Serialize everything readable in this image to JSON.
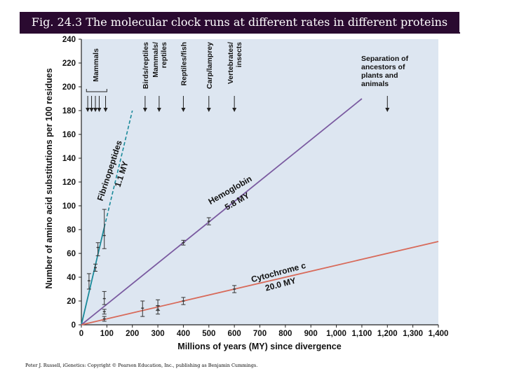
{
  "figure_title": "Fig. 24.3 The molecular clock runs at different rates in different proteins",
  "footer": "Peter J. Russell, iGenetics: Copyright © Pearson Education, Inc., publishing as Benjamin Cummings.",
  "chart_data": {
    "type": "line",
    "xlabel": "Millions of years (MY) since divergence",
    "ylabel": "Number of amino acid substitutions per 100 residues",
    "xlim": [
      0,
      1400
    ],
    "ylim": [
      0,
      240
    ],
    "x_ticks": [
      0,
      100,
      200,
      300,
      400,
      500,
      600,
      700,
      800,
      900,
      1000,
      1100,
      1200,
      1300,
      1400
    ],
    "x_tick_labels": [
      "0",
      "100",
      "200",
      "300",
      "400",
      "500",
      "600",
      "700",
      "800",
      "900",
      "1,000",
      "1,100",
      "1,200",
      "1,300",
      "1,400"
    ],
    "y_ticks": [
      0,
      20,
      40,
      60,
      80,
      100,
      120,
      140,
      160,
      180,
      200,
      220,
      240
    ],
    "y_tick_labels": [
      "0",
      "20",
      "40",
      "60",
      "80",
      "100",
      "120",
      "140",
      "160",
      "180",
      "200",
      "220",
      "240"
    ],
    "grid": false,
    "series": [
      {
        "name": "Fibrinopeptides",
        "rate_label": "1.1 MY",
        "color": "#1a8a9a",
        "line": [
          [
            0,
            0
          ],
          [
            90,
            82
          ]
        ],
        "dashed_extension": [
          [
            90,
            82
          ],
          [
            200,
            180
          ]
        ],
        "points": [
          {
            "x": 30,
            "y": 37,
            "low": 30,
            "high": 43
          },
          {
            "x": 55,
            "y": 48,
            "low": 45,
            "high": 51
          },
          {
            "x": 65,
            "y": 65,
            "low": 58,
            "high": 69
          },
          {
            "x": 90,
            "y": 75,
            "low": 64,
            "high": 97
          }
        ]
      },
      {
        "name": "Hemoglobin",
        "rate_label": "5.8 MY",
        "color": "#7a5aa0",
        "line": [
          [
            0,
            0
          ],
          [
            1100,
            190
          ]
        ],
        "points": [
          {
            "x": 90,
            "y": 22,
            "low": 17,
            "high": 28
          },
          {
            "x": 400,
            "y": 69,
            "low": 67,
            "high": 71
          },
          {
            "x": 500,
            "y": 87,
            "low": 84,
            "high": 90
          }
        ]
      },
      {
        "name": "Cytochrome c",
        "rate_label": "20.0 MY",
        "color": "#d86a5a",
        "line": [
          [
            0,
            0
          ],
          [
            1400,
            70
          ]
        ],
        "points": [
          {
            "x": 90,
            "y": 5,
            "low": 3,
            "high": 7
          },
          {
            "x": 90,
            "y": 11,
            "low": 9,
            "high": 13
          },
          {
            "x": 240,
            "y": 14,
            "low": 7,
            "high": 20
          },
          {
            "x": 300,
            "y": 13,
            "low": 9,
            "high": 16
          },
          {
            "x": 300,
            "y": 16,
            "low": 12,
            "high": 21
          },
          {
            "x": 400,
            "y": 20,
            "low": 17,
            "high": 23
          },
          {
            "x": 600,
            "y": 30,
            "low": 27,
            "high": 33
          }
        ]
      }
    ],
    "bracket": {
      "label": "Mammals",
      "x_range": [
        20,
        100
      ],
      "arrows_x": [
        25,
        40,
        55,
        70,
        95
      ]
    },
    "divergence_annotations": [
      {
        "label": [
          "Birds/reptiles"
        ],
        "x": 250
      },
      {
        "label": [
          "Mammals/",
          "reptiles"
        ],
        "x": 305
      },
      {
        "label": [
          "Reptiles/fish"
        ],
        "x": 400
      },
      {
        "label": [
          "Carp/lamprey"
        ],
        "x": 500
      },
      {
        "label": [
          "Vertebrates/",
          "insects"
        ],
        "x": 600
      },
      {
        "label": [
          "Separation of",
          "ancestors of",
          "plants and",
          "animals"
        ],
        "x": 1200
      }
    ]
  }
}
